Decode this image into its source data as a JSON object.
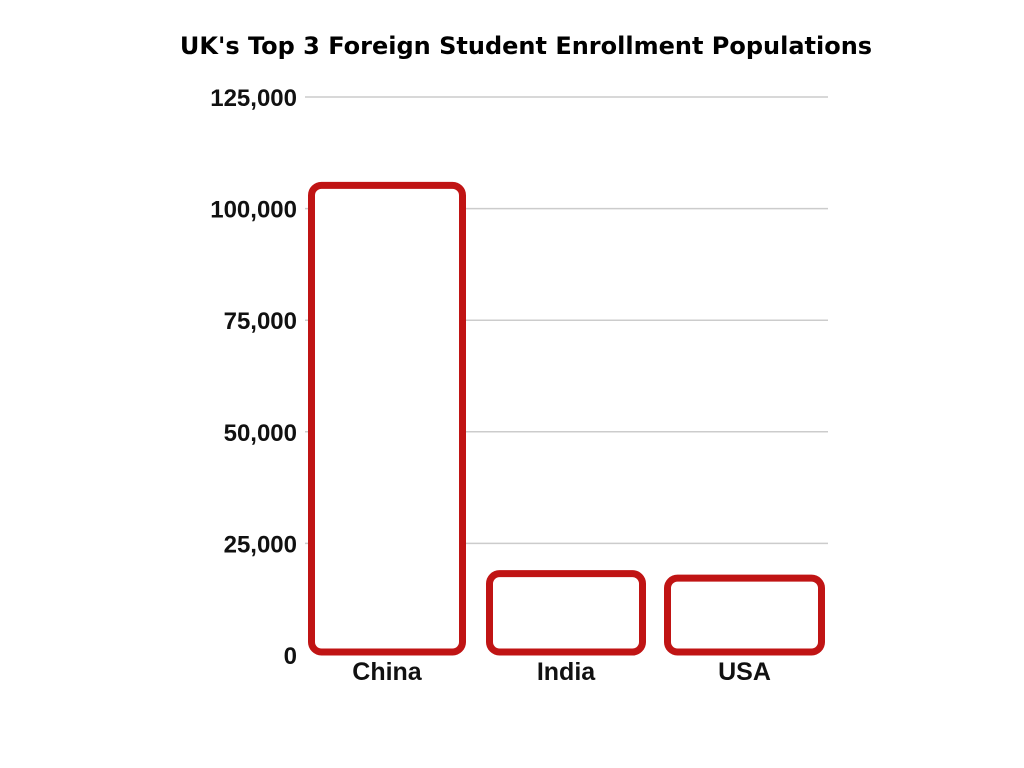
{
  "chart_data": {
    "type": "bar",
    "title": "UK's Top 3 Foreign Student Enrollment Populations",
    "categories": [
      "China",
      "India",
      "USA"
    ],
    "values": [
      106000,
      19000,
      18000
    ],
    "ylim": [
      0,
      125000
    ],
    "yticks": [
      "0",
      "25,000",
      "50,000",
      "75,000",
      "100,000",
      "125,000"
    ],
    "ytick_values": [
      0,
      25000,
      50000,
      75000,
      100000,
      125000
    ],
    "grid": true,
    "bar_outline_color": "#c01414",
    "bar_fill_color": "#ffffff",
    "grid_color": "#cccccc"
  }
}
